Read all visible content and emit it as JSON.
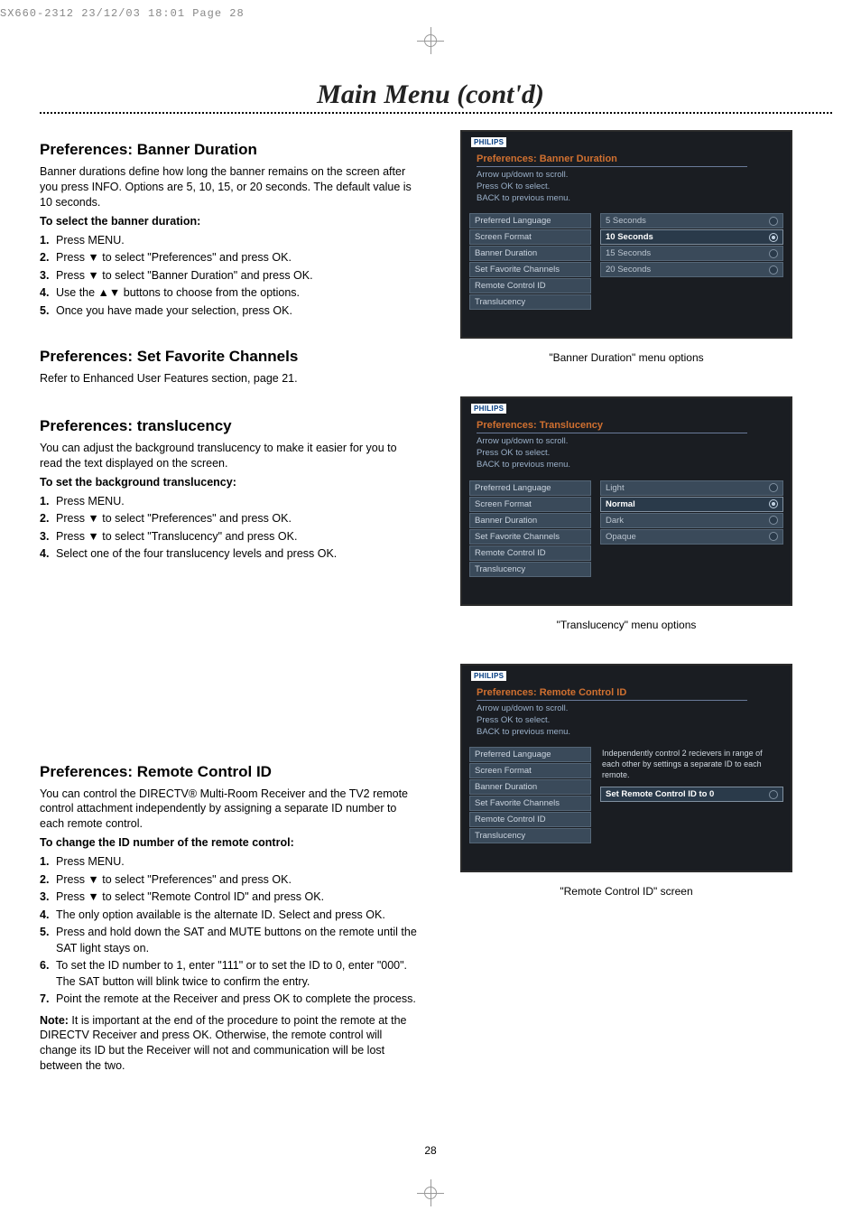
{
  "meta_header": "SX660-2312  23/12/03  18:01  Page 28",
  "page_title": "Main Menu (cont'd)",
  "page_number": "28",
  "brand": "PHILIPS",
  "tv_hint_lines": [
    "Arrow up/down to scroll.",
    "Press OK to select.",
    "BACK to previous menu."
  ],
  "sidebar_items": [
    "Preferred Language",
    "Screen Format",
    "Banner Duration",
    "Set Favorite Channels",
    "Remote Control ID",
    "Translucency"
  ],
  "sec1": {
    "heading": "Preferences: Banner Duration",
    "body": "Banner durations define how long the banner remains on the screen after you press INFO. Options are 5, 10, 15, or 20 seconds. The default value is 10 seconds.",
    "instr_head": "To select the banner duration:",
    "steps": [
      "Press MENU.",
      "Press ▼ to select \"Preferences\" and press OK.",
      "Press ▼ to select \"Banner Duration\" and press OK.",
      "Use the ▲▼ buttons to choose from the options.",
      "Once you have made your selection, press OK."
    ]
  },
  "sec2": {
    "heading": "Preferences: Set Favorite Channels",
    "body": "Refer to Enhanced User Features section, page 21."
  },
  "sec3": {
    "heading": "Preferences: translucency",
    "body": "You can adjust the background translucency to make it easier for you to read the text displayed on the screen.",
    "instr_head": "To set the background translucency:",
    "steps": [
      "Press MENU.",
      "Press ▼ to select \"Preferences\" and press OK.",
      "Press ▼ to select \"Translucency\" and press OK.",
      "Select one of the four translucency levels and press OK."
    ]
  },
  "sec4": {
    "heading": "Preferences: Remote Control ID",
    "body": "You can control the DIRECTV® Multi-Room Receiver and the TV2 remote control attachment independently by assigning a separate ID number to each remote control.",
    "instr_head": "To change the ID number of the remote control:",
    "steps": [
      "Press MENU.",
      "Press ▼ to select \"Preferences\" and press OK.",
      "Press ▼ to select \"Remote Control ID\" and press OK.",
      "The only option available is the alternate ID. Select and press OK.",
      "Press and hold down the SAT and MUTE buttons on the remote until the SAT light stays on.",
      "To set the ID number to 1, enter \"111\" or to set the ID to 0, enter \"000\". The SAT button will blink twice to confirm the entry.",
      "Point the remote at the Receiver and press OK to complete the process."
    ],
    "note_label": "Note:",
    "note_body": " It is important at the end of the procedure to point the remote at the DIRECTV Receiver and press OK. Otherwise, the remote control will change its ID but the Receiver will not and communication will be lost between the two."
  },
  "screenshot1": {
    "title": "Preferences: Banner Duration",
    "options": [
      "5   Seconds",
      "10 Seconds",
      "15 Seconds",
      "20 Seconds"
    ],
    "selected_index": 1,
    "caption": "\"Banner Duration\" menu options"
  },
  "screenshot2": {
    "title": "Preferences: Translucency",
    "options": [
      "Light",
      "Normal",
      "Dark",
      "Opaque"
    ],
    "selected_index": 1,
    "caption": "\"Translucency\" menu options"
  },
  "screenshot3": {
    "title": "Preferences: Remote Control ID",
    "desc": "Independently control 2 recievers in range of each other by settings a separate ID to each remote.",
    "action": "Set Remote Control ID to 0",
    "caption": "\"Remote Control ID\" screen"
  }
}
